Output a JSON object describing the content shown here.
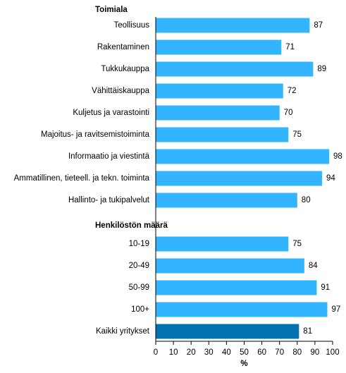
{
  "chart_data": {
    "type": "bar",
    "orientation": "horizontal",
    "groups": [
      {
        "title": "Toimiala",
        "categories": [
          "Teollisuus",
          "Rakentaminen",
          "Tukkukauppa",
          "Vähittäiskauppa",
          "Kuljetus ja varastointi",
          "Majoitus- ja ravitsemistoiminta",
          "Informaatio ja viestintä",
          "Ammatillinen, tieteell. ja tekn. toiminta",
          "Hallinto- ja tukipalvelut"
        ],
        "values": [
          87,
          71,
          89,
          72,
          70,
          75,
          98,
          94,
          80
        ]
      },
      {
        "title": "Henkilöstön määrä",
        "categories": [
          "10-19",
          "20-49",
          "50-99",
          "100+"
        ],
        "values": [
          75,
          84,
          91,
          97
        ]
      },
      {
        "title": "",
        "categories": [
          "Kaikki yritykset"
        ],
        "values": [
          81
        ],
        "highlight": true
      }
    ],
    "xlabel": "%",
    "xlim": [
      0,
      100
    ],
    "xticks": [
      0,
      10,
      20,
      30,
      40,
      50,
      60,
      70,
      80,
      90,
      100
    ],
    "colors": {
      "bar": "#33b4ff",
      "highlight": "#0073b0",
      "axis": "#000000"
    },
    "grid": false,
    "legend": "none"
  }
}
